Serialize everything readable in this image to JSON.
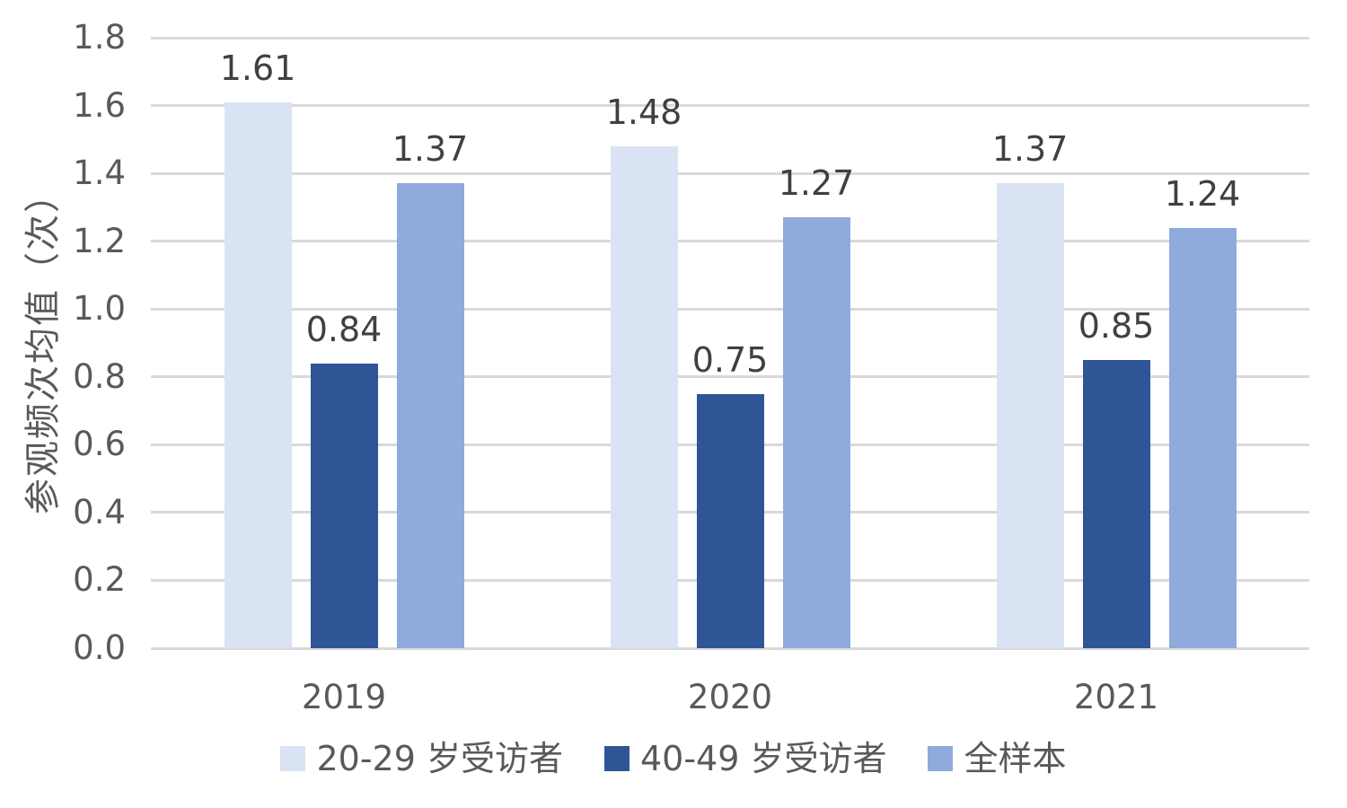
{
  "chart_data": {
    "type": "bar",
    "title": "",
    "xlabel": "",
    "ylabel": "参观频次均值（次）",
    "categories": [
      "2019",
      "2020",
      "2021"
    ],
    "series": [
      {
        "name": "20-29 岁受访者",
        "color": "#dae3f3",
        "values": [
          1.61,
          1.48,
          1.37
        ]
      },
      {
        "name": "40-49 岁受访者",
        "color": "#2f5597",
        "values": [
          0.84,
          0.75,
          0.85
        ]
      },
      {
        "name": "全样本",
        "color": "#8faadc",
        "values": [
          1.37,
          1.27,
          1.24
        ]
      }
    ],
    "value_labels": [
      "1.61",
      "0.84",
      "1.37",
      "1.48",
      "0.75",
      "1.27",
      "1.37",
      "0.85",
      "1.24"
    ],
    "ylim": [
      0,
      1.8
    ],
    "yticks": [
      "1.8",
      "1.6",
      "1.4",
      "1.2",
      "1.0",
      "0.8",
      "0.6",
      "0.4",
      "0.2",
      "0.0"
    ],
    "grid": true,
    "legend_position": "bottom"
  },
  "styles": {
    "background": "#ffffff",
    "grid_color": "#d9d9d9",
    "tick_text_color": "#595959",
    "axis_title_color": "#595959",
    "x_label_color": "#595959",
    "value_label_color": "#404040",
    "legend_text_color": "#595959"
  }
}
